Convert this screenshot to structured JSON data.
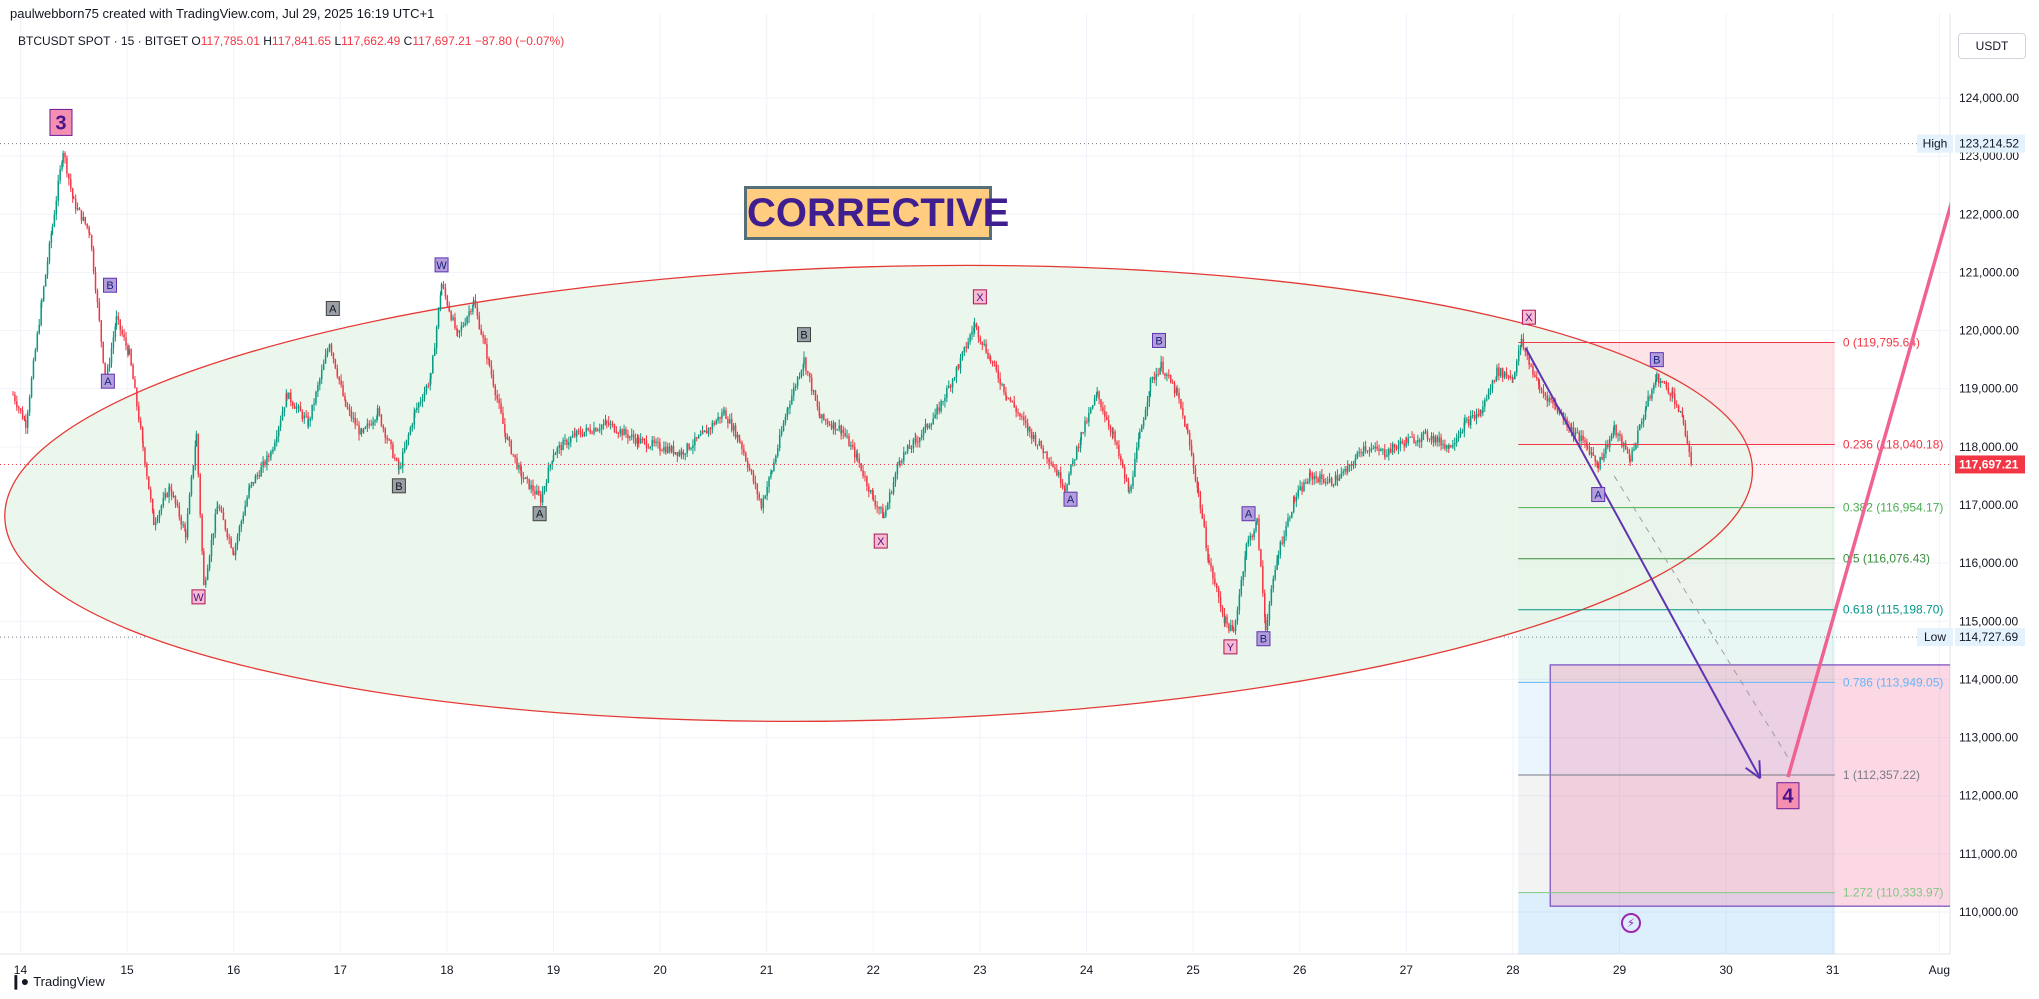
{
  "header": {
    "author_line": "paulwebborn75 created with TradingView.com, Jul 29, 2025 16:19 UTC+1",
    "symbol": "BTCUSDT SPOT · 15 · BITGET",
    "ohlc": [
      {
        "label": "O",
        "value": "117,785.01"
      },
      {
        "label": "H",
        "value": "117,841.65"
      },
      {
        "label": "L",
        "value": "117,662.49"
      },
      {
        "label": "C",
        "value": "117,697.21"
      }
    ],
    "change": "−87.80 (−0.07%)",
    "currency_button": "USDT"
  },
  "footer": {
    "logo_text": "TradingView",
    "logo_icon": "tradingview-logo-icon"
  },
  "annotation": {
    "corrective_label": "CORRECTIVE"
  },
  "icons": {
    "fast_forward": "lightning-bolt-icon"
  },
  "colors": {
    "candle_up": "#089981",
    "candle_down": "#f23645",
    "ellipse_fill": "#e8f5e9",
    "ellipse_stroke": "#e53935",
    "target_arrow": "#f06292",
    "down_arrow": "#5e35b1",
    "last_price": "#f23645"
  },
  "chart_data": {
    "type": "candlestick",
    "symbol": "BTCUSDT",
    "ylim": [
      109600,
      124800
    ],
    "yticks": [
      110000,
      111000,
      112000,
      113000,
      114000,
      115000,
      116000,
      117000,
      118000,
      119000,
      120000,
      121000,
      122000,
      123000,
      124000
    ],
    "ytick_labels": [
      "110,000.00",
      "111,000.00",
      "112,000.00",
      "113,000.00",
      "114,000.00",
      "115,000.00",
      "116,000.00",
      "117,000.00",
      "118,000.00",
      "119,000.00",
      "120,000.00",
      "121,000.00",
      "122,000.00",
      "123,000.00",
      "124,000.00"
    ],
    "xlim": [
      13.93,
      32.1
    ],
    "xticks": [
      14,
      15,
      16,
      17,
      18,
      19,
      20,
      21,
      22,
      23,
      24,
      25,
      26,
      27,
      28,
      29,
      30,
      31,
      32
    ],
    "xtick_labels": [
      "14",
      "15",
      "16",
      "17",
      "18",
      "19",
      "20",
      "21",
      "22",
      "23",
      "24",
      "25",
      "26",
      "27",
      "28",
      "29",
      "30",
      "31",
      "Aug"
    ],
    "price_path": [
      [
        13.93,
        118900
      ],
      [
        14.05,
        118400
      ],
      [
        14.2,
        120500
      ],
      [
        14.3,
        121800
      ],
      [
        14.4,
        123100
      ],
      [
        14.5,
        122200
      ],
      [
        14.65,
        121700
      ],
      [
        14.8,
        119100
      ],
      [
        14.9,
        120200
      ],
      [
        15.02,
        119600
      ],
      [
        15.15,
        118000
      ],
      [
        15.25,
        116700
      ],
      [
        15.4,
        117300
      ],
      [
        15.55,
        116500
      ],
      [
        15.65,
        118200
      ],
      [
        15.72,
        115600
      ],
      [
        15.85,
        117000
      ],
      [
        16.0,
        116200
      ],
      [
        16.15,
        117300
      ],
      [
        16.35,
        117900
      ],
      [
        16.5,
        118900
      ],
      [
        16.7,
        118400
      ],
      [
        16.9,
        119800
      ],
      [
        17.05,
        118700
      ],
      [
        17.2,
        118200
      ],
      [
        17.35,
        118600
      ],
      [
        17.55,
        117600
      ],
      [
        17.7,
        118600
      ],
      [
        17.85,
        119200
      ],
      [
        17.95,
        120800
      ],
      [
        18.1,
        119900
      ],
      [
        18.25,
        120500
      ],
      [
        18.4,
        119400
      ],
      [
        18.55,
        118200
      ],
      [
        18.7,
        117500
      ],
      [
        18.88,
        117100
      ],
      [
        19.0,
        117900
      ],
      [
        19.2,
        118200
      ],
      [
        19.5,
        118400
      ],
      [
        19.8,
        118100
      ],
      [
        20.0,
        118000
      ],
      [
        20.2,
        117900
      ],
      [
        20.4,
        118200
      ],
      [
        20.6,
        118600
      ],
      [
        20.75,
        118100
      ],
      [
        20.95,
        117000
      ],
      [
        21.05,
        117600
      ],
      [
        21.2,
        118700
      ],
      [
        21.35,
        119500
      ],
      [
        21.5,
        118500
      ],
      [
        21.7,
        118300
      ],
      [
        21.85,
        117800
      ],
      [
        22.0,
        117100
      ],
      [
        22.1,
        116800
      ],
      [
        22.25,
        117800
      ],
      [
        22.4,
        118100
      ],
      [
        22.6,
        118600
      ],
      [
        22.8,
        119400
      ],
      [
        22.95,
        120100
      ],
      [
        23.1,
        119500
      ],
      [
        23.25,
        118900
      ],
      [
        23.45,
        118300
      ],
      [
        23.65,
        117800
      ],
      [
        23.8,
        117300
      ],
      [
        23.95,
        118200
      ],
      [
        24.1,
        118900
      ],
      [
        24.25,
        118200
      ],
      [
        24.4,
        117200
      ],
      [
        24.5,
        118200
      ],
      [
        24.6,
        119100
      ],
      [
        24.7,
        119400
      ],
      [
        24.85,
        118900
      ],
      [
        24.95,
        118200
      ],
      [
        25.05,
        117200
      ],
      [
        25.15,
        116000
      ],
      [
        25.3,
        115000
      ],
      [
        25.38,
        114800
      ],
      [
        25.5,
        116300
      ],
      [
        25.6,
        116700
      ],
      [
        25.68,
        114900
      ],
      [
        25.8,
        116200
      ],
      [
        25.95,
        117100
      ],
      [
        26.1,
        117500
      ],
      [
        26.3,
        117400
      ],
      [
        26.45,
        117600
      ],
      [
        26.6,
        118000
      ],
      [
        26.8,
        117900
      ],
      [
        27.0,
        118100
      ],
      [
        27.2,
        118200
      ],
      [
        27.4,
        118000
      ],
      [
        27.55,
        118400
      ],
      [
        27.7,
        118600
      ],
      [
        27.85,
        119300
      ],
      [
        28.0,
        119200
      ],
      [
        28.08,
        119800
      ],
      [
        28.25,
        119000
      ],
      [
        28.4,
        118700
      ],
      [
        28.55,
        118300
      ],
      [
        28.7,
        118000
      ],
      [
        28.8,
        117700
      ],
      [
        28.95,
        118300
      ],
      [
        29.1,
        117800
      ],
      [
        29.25,
        118700
      ],
      [
        29.35,
        119200
      ],
      [
        29.5,
        118900
      ],
      [
        29.6,
        118400
      ],
      [
        29.68,
        117700
      ]
    ],
    "last_price": {
      "value": 117697.21,
      "label": "117,697.21"
    },
    "high": {
      "label": "High",
      "value": 123214.52,
      "value_label": "123,214.52"
    },
    "low": {
      "label": "Low",
      "value": 114727.69,
      "value_label": "114,727.69"
    },
    "fibonacci": {
      "x_start": 28.05,
      "x_end": 31.02,
      "levels": [
        {
          "label": "0 (119,795.64)",
          "value": 119795.64,
          "color": "#f23645"
        },
        {
          "label": "0.236 (118,040.18)",
          "value": 118040.18,
          "color": "#f23645"
        },
        {
          "label": "0.382 (116,954.17)",
          "value": 116954.17,
          "color": "#4caf50"
        },
        {
          "label": "0.5 (116,076.43)",
          "value": 116076.43,
          "color": "#388e3c"
        },
        {
          "label": "0.618 (115,198.70)",
          "value": 115198.7,
          "color": "#009688"
        },
        {
          "label": "0.786 (113,949.05)",
          "value": 113949.05,
          "color": "#64b5f6"
        },
        {
          "label": "1 (112,357.22)",
          "value": 112357.22,
          "color": "#787b86"
        },
        {
          "label": "1.272 (110,333.97)",
          "value": 110333.97,
          "color": "#81c784"
        }
      ]
    },
    "target_box": {
      "x0": 28.35,
      "x1": 32.15,
      "y0": 110100,
      "y1": 114250,
      "color": "#7e57c2"
    },
    "ellipse": {
      "cx": 22.05,
      "cy": 117200,
      "rx": 8.2,
      "ry": 3900,
      "tilt_deg": -1.6
    },
    "wave_labels": [
      {
        "text": "3",
        "x": 14.38,
        "y": 123580,
        "style": "major"
      },
      {
        "text": "4",
        "x": 30.58,
        "y": 112000,
        "style": "major"
      },
      {
        "text": "B",
        "x": 14.84,
        "y": 120780,
        "style": "purple"
      },
      {
        "text": "A",
        "x": 14.82,
        "y": 119130,
        "style": "purple"
      },
      {
        "text": "W",
        "x": 15.67,
        "y": 115420,
        "style": "pink"
      },
      {
        "text": "A",
        "x": 16.93,
        "y": 120380,
        "style": "gray"
      },
      {
        "text": "W",
        "x": 17.95,
        "y": 121130,
        "style": "purple"
      },
      {
        "text": "B",
        "x": 17.55,
        "y": 117330,
        "style": "gray"
      },
      {
        "text": "A",
        "x": 18.87,
        "y": 116850,
        "style": "gray"
      },
      {
        "text": "B",
        "x": 21.35,
        "y": 119930,
        "style": "gray"
      },
      {
        "text": "X",
        "x": 22.07,
        "y": 116380,
        "style": "pink"
      },
      {
        "text": "X",
        "x": 23.0,
        "y": 120580,
        "style": "pink"
      },
      {
        "text": "A",
        "x": 23.85,
        "y": 117100,
        "style": "purple"
      },
      {
        "text": "B",
        "x": 24.68,
        "y": 119830,
        "style": "purple"
      },
      {
        "text": "Y",
        "x": 25.35,
        "y": 114560,
        "style": "pink"
      },
      {
        "text": "A",
        "x": 25.52,
        "y": 116850,
        "style": "purple"
      },
      {
        "text": "B",
        "x": 25.66,
        "y": 114700,
        "style": "purple"
      },
      {
        "text": "X",
        "x": 28.15,
        "y": 120230,
        "style": "pink"
      },
      {
        "text": "B",
        "x": 29.35,
        "y": 119500,
        "style": "purple"
      },
      {
        "text": "A",
        "x": 28.8,
        "y": 117180,
        "style": "purple"
      }
    ],
    "projection_down": {
      "from": [
        28.12,
        119700
      ],
      "to": [
        30.32,
        112300
      ]
    },
    "projection_dashed": {
      "from": [
        28.95,
        117500
      ],
      "to": [
        30.6,
        112600
      ]
    },
    "projection_up": {
      "from": [
        30.58,
        112320
      ],
      "to": [
        32.3,
        123400
      ]
    }
  }
}
